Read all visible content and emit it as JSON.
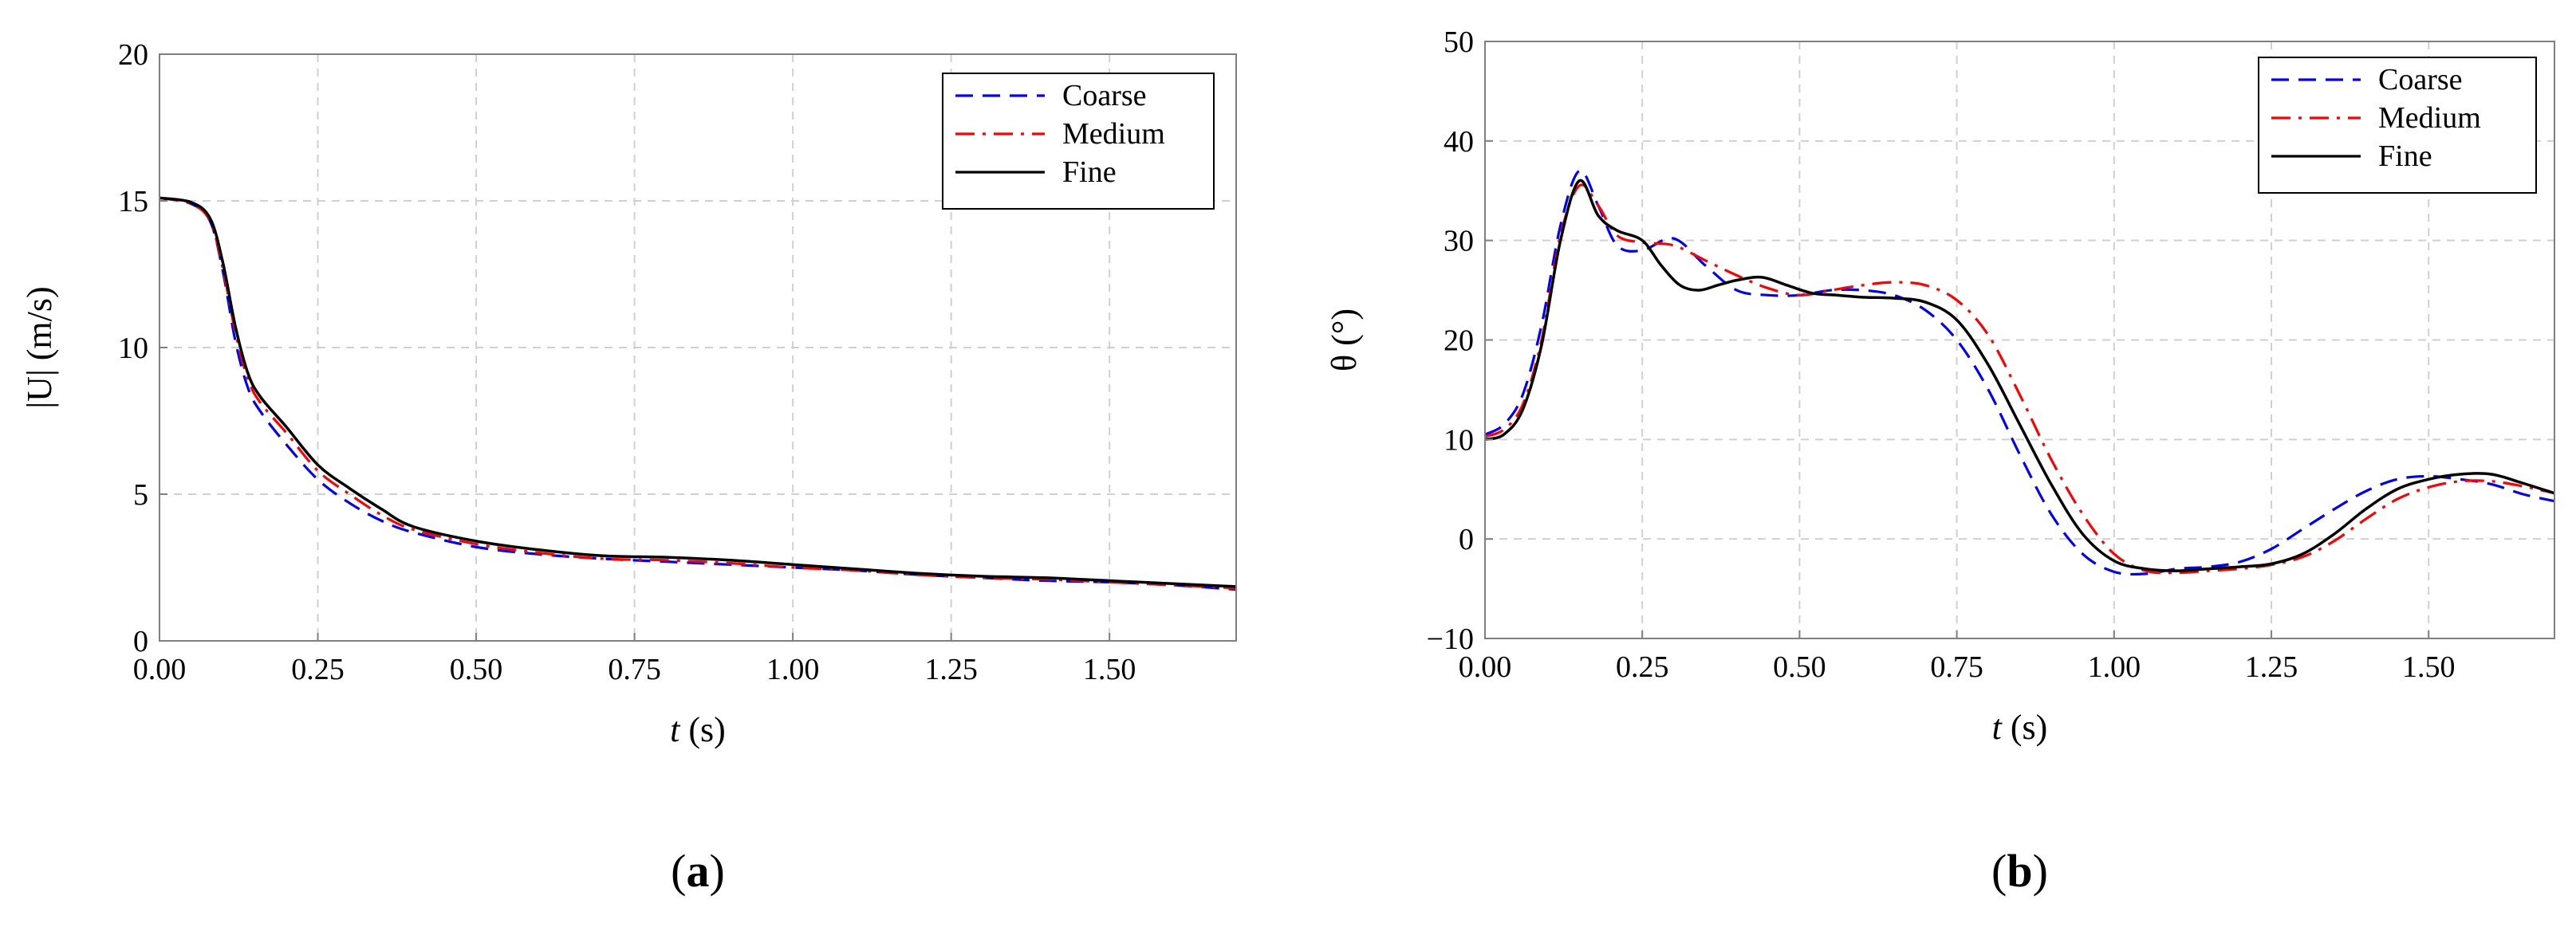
{
  "chart_data": [
    {
      "type": "line",
      "panel_label": "(a)",
      "xlabel": "t (s)",
      "ylabel": "|U| (m/s)",
      "xlim": [
        0,
        1.7
      ],
      "ylim": [
        0,
        20
      ],
      "xticks": [
        "0.00",
        "0.25",
        "0.50",
        "0.75",
        "1.00",
        "1.25",
        "1.50"
      ],
      "xtick_values": [
        0,
        0.25,
        0.5,
        0.75,
        1.0,
        1.25,
        1.5
      ],
      "yticks": [
        "0",
        "5",
        "10",
        "15",
        "20"
      ],
      "ytick_values": [
        0,
        5,
        10,
        15,
        20
      ],
      "grid": true,
      "legend_position": "top-right",
      "series": [
        {
          "name": "Coarse",
          "color": "#0000ff",
          "style": "dashed",
          "x": [
            0,
            0.05,
            0.08,
            0.1,
            0.12,
            0.14,
            0.16,
            0.2,
            0.25,
            0.3,
            0.35,
            0.4,
            0.5,
            0.6,
            0.7,
            0.8,
            0.9,
            1.0,
            1.1,
            1.2,
            1.3,
            1.4,
            1.5,
            1.6,
            1.7
          ],
          "y": [
            15.1,
            14.9,
            14.3,
            12.6,
            10.2,
            8.6,
            7.8,
            6.7,
            5.5,
            4.7,
            4.1,
            3.7,
            3.2,
            2.95,
            2.8,
            2.7,
            2.6,
            2.5,
            2.4,
            2.25,
            2.15,
            2.05,
            2.0,
            1.9,
            1.75
          ]
        },
        {
          "name": "Medium",
          "color": "#ff0000",
          "style": "dashdot",
          "x": [
            0,
            0.05,
            0.08,
            0.1,
            0.12,
            0.14,
            0.16,
            0.2,
            0.25,
            0.3,
            0.35,
            0.4,
            0.5,
            0.6,
            0.7,
            0.8,
            0.9,
            1.0,
            1.1,
            1.2,
            1.3,
            1.4,
            1.5,
            1.6,
            1.7
          ],
          "y": [
            15.1,
            14.9,
            14.3,
            12.7,
            10.5,
            8.9,
            8.1,
            7.1,
            5.8,
            5.0,
            4.3,
            3.8,
            3.3,
            3.0,
            2.8,
            2.75,
            2.65,
            2.5,
            2.4,
            2.25,
            2.15,
            2.1,
            2.0,
            1.9,
            1.8
          ]
        },
        {
          "name": "Fine",
          "color": "#000000",
          "style": "solid",
          "x": [
            0,
            0.05,
            0.08,
            0.1,
            0.12,
            0.14,
            0.16,
            0.2,
            0.25,
            0.3,
            0.35,
            0.4,
            0.5,
            0.6,
            0.7,
            0.8,
            0.9,
            1.0,
            1.1,
            1.2,
            1.3,
            1.4,
            1.5,
            1.6,
            1.7
          ],
          "y": [
            15.1,
            14.95,
            14.4,
            12.9,
            10.7,
            9.1,
            8.3,
            7.3,
            6.0,
            5.2,
            4.5,
            3.9,
            3.4,
            3.1,
            2.9,
            2.85,
            2.75,
            2.6,
            2.45,
            2.3,
            2.2,
            2.15,
            2.05,
            1.95,
            1.85
          ]
        }
      ]
    },
    {
      "type": "line",
      "panel_label": "(b)",
      "xlabel": "t (s)",
      "ylabel": "θ (°)",
      "xlim": [
        0,
        1.7
      ],
      "ylim": [
        -10,
        50
      ],
      "xticks": [
        "0.00",
        "0.25",
        "0.50",
        "0.75",
        "1.00",
        "1.25",
        "1.50"
      ],
      "xtick_values": [
        0,
        0.25,
        0.5,
        0.75,
        1.0,
        1.25,
        1.5
      ],
      "yticks": [
        "−10",
        "0",
        "10",
        "20",
        "30",
        "40",
        "50"
      ],
      "ytick_values": [
        -10,
        0,
        10,
        20,
        30,
        40,
        50
      ],
      "grid": true,
      "legend_position": "top-right",
      "series": [
        {
          "name": "Coarse",
          "color": "#0000ff",
          "style": "dashed",
          "x": [
            0,
            0.03,
            0.06,
            0.09,
            0.12,
            0.15,
            0.18,
            0.21,
            0.25,
            0.3,
            0.35,
            0.4,
            0.45,
            0.5,
            0.55,
            0.6,
            0.65,
            0.7,
            0.75,
            0.8,
            0.85,
            0.9,
            0.95,
            1.0,
            1.05,
            1.1,
            1.15,
            1.2,
            1.25,
            1.3,
            1.35,
            1.4,
            1.45,
            1.5,
            1.55,
            1.6,
            1.65,
            1.7
          ],
          "y": [
            10.5,
            11.5,
            14.5,
            21.5,
            31.5,
            37.0,
            33.5,
            29.5,
            29.0,
            30.2,
            27.5,
            25.0,
            24.5,
            24.5,
            25.0,
            25.0,
            24.5,
            23.0,
            20.0,
            15.0,
            8.5,
            2.5,
            -1.5,
            -3.3,
            -3.5,
            -3.0,
            -2.8,
            -2.3,
            -1.0,
            1.0,
            3.0,
            4.8,
            6.0,
            6.3,
            6.0,
            5.5,
            4.5,
            3.8
          ]
        },
        {
          "name": "Medium",
          "color": "#ff0000",
          "style": "dashdot",
          "x": [
            0,
            0.03,
            0.06,
            0.09,
            0.12,
            0.15,
            0.18,
            0.21,
            0.25,
            0.3,
            0.35,
            0.4,
            0.45,
            0.5,
            0.55,
            0.6,
            0.65,
            0.7,
            0.75,
            0.8,
            0.85,
            0.9,
            0.95,
            1.0,
            1.05,
            1.1,
            1.15,
            1.2,
            1.25,
            1.3,
            1.35,
            1.4,
            1.45,
            1.5,
            1.55,
            1.6,
            1.65,
            1.7
          ],
          "y": [
            10.3,
            11.0,
            13.5,
            20.0,
            30.5,
            35.5,
            33.5,
            30.5,
            29.8,
            29.5,
            28.0,
            26.5,
            25.2,
            24.5,
            25.0,
            25.5,
            25.8,
            25.5,
            24.0,
            20.5,
            14.5,
            8.0,
            2.5,
            -1.5,
            -3.2,
            -3.4,
            -3.2,
            -3.0,
            -2.6,
            -1.8,
            -0.2,
            2.0,
            4.0,
            5.2,
            5.8,
            5.8,
            5.3,
            4.6
          ]
        },
        {
          "name": "Fine",
          "color": "#000000",
          "style": "solid",
          "x": [
            0,
            0.03,
            0.06,
            0.09,
            0.12,
            0.15,
            0.18,
            0.21,
            0.25,
            0.28,
            0.31,
            0.34,
            0.37,
            0.4,
            0.44,
            0.48,
            0.52,
            0.56,
            0.6,
            0.65,
            0.7,
            0.75,
            0.8,
            0.85,
            0.9,
            0.95,
            1.0,
            1.05,
            1.1,
            1.15,
            1.2,
            1.25,
            1.3,
            1.35,
            1.4,
            1.45,
            1.5,
            1.55,
            1.6,
            1.65,
            1.7
          ],
          "y": [
            10.0,
            10.5,
            13.0,
            19.5,
            30.0,
            36.0,
            32.5,
            31.0,
            30.0,
            27.5,
            25.5,
            25.0,
            25.5,
            26.0,
            26.3,
            25.5,
            24.7,
            24.5,
            24.3,
            24.2,
            23.8,
            22.0,
            17.5,
            11.5,
            5.5,
            0.5,
            -2.2,
            -3.0,
            -3.2,
            -3.0,
            -2.8,
            -2.5,
            -1.5,
            0.5,
            3.0,
            5.0,
            6.0,
            6.5,
            6.5,
            5.6,
            4.6
          ]
        }
      ]
    }
  ]
}
